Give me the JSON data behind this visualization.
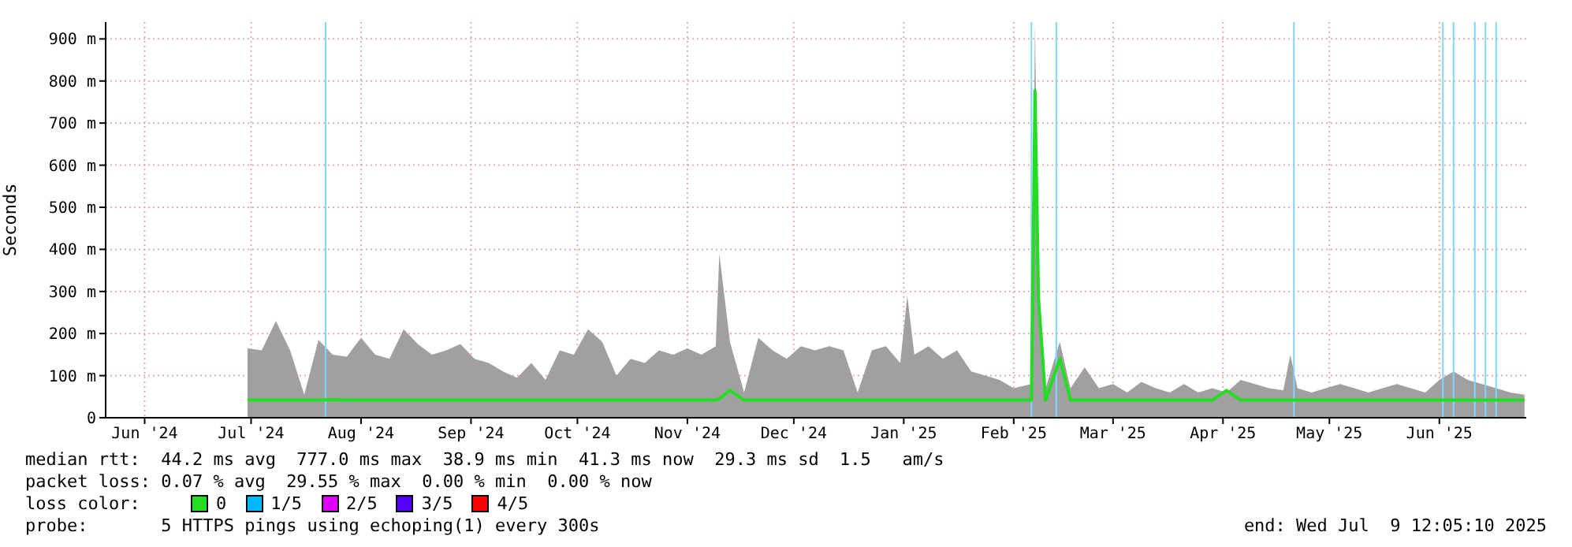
{
  "chart_data": {
    "type": "area",
    "ylabel": "Seconds",
    "legend_title": "loss color:",
    "legend": "bottom",
    "grid": true,
    "xlim": [
      "2024-06-04",
      "2025-07-09T12:05"
    ],
    "xticks": [
      {
        "value": "2024-06-15",
        "label": "Jun '24"
      },
      {
        "value": "2024-07-15",
        "label": "Jul '24"
      },
      {
        "value": "2024-08-15",
        "label": "Aug '24"
      },
      {
        "value": "2024-09-15",
        "label": "Sep '24"
      },
      {
        "value": "2024-10-15",
        "label": "Oct '24"
      },
      {
        "value": "2024-11-15",
        "label": "Nov '24"
      },
      {
        "value": "2024-12-15",
        "label": "Dec '24"
      },
      {
        "value": "2025-01-15",
        "label": "Jan '25"
      },
      {
        "value": "2025-02-15",
        "label": "Feb '25"
      },
      {
        "value": "2025-03-15",
        "label": "Mar '25"
      },
      {
        "value": "2025-04-15",
        "label": "Apr '25"
      },
      {
        "value": "2025-05-15",
        "label": "May '25"
      },
      {
        "value": "2025-06-15",
        "label": "Jun '25"
      }
    ],
    "ylim": [
      0,
      940
    ],
    "yticks": [
      0,
      {
        "value": 100,
        "label": "100 m"
      },
      {
        "value": 200,
        "label": "200 m"
      },
      {
        "value": 300,
        "label": "300 m"
      },
      {
        "value": 400,
        "label": "400 m"
      },
      {
        "value": 500,
        "label": "500 m"
      },
      {
        "value": 600,
        "label": "600 m"
      },
      {
        "value": 700,
        "label": "700 m"
      },
      {
        "value": 800,
        "label": "800 m"
      },
      {
        "value": 900,
        "label": "900 m"
      }
    ],
    "x": [
      "2024-07-14",
      "2024-07-18",
      "2024-07-22",
      "2024-07-26",
      "2024-07-30",
      "2024-08-03",
      "2024-08-07",
      "2024-08-11",
      "2024-08-15",
      "2024-08-19",
      "2024-08-23",
      "2024-08-27",
      "2024-08-31",
      "2024-09-04",
      "2024-09-08",
      "2024-09-12",
      "2024-09-16",
      "2024-09-20",
      "2024-09-24",
      "2024-09-28",
      "2024-10-02",
      "2024-10-06",
      "2024-10-10",
      "2024-10-14",
      "2024-10-18",
      "2024-10-22",
      "2024-10-26",
      "2024-10-30",
      "2024-11-03",
      "2024-11-07",
      "2024-11-11",
      "2024-11-15",
      "2024-11-19",
      "2024-11-23",
      "2024-11-24",
      "2024-11-27",
      "2024-12-01",
      "2024-12-05",
      "2024-12-09",
      "2024-12-13",
      "2024-12-17",
      "2024-12-21",
      "2024-12-25",
      "2024-12-29",
      "2025-01-02",
      "2025-01-06",
      "2025-01-10",
      "2025-01-14",
      "2025-01-16",
      "2025-01-18",
      "2025-01-22",
      "2025-01-26",
      "2025-01-30",
      "2025-02-03",
      "2025-02-07",
      "2025-02-11",
      "2025-02-15",
      "2025-02-20",
      "2025-02-21",
      "2025-02-22",
      "2025-02-24",
      "2025-02-28",
      "2025-03-03",
      "2025-03-07",
      "2025-03-11",
      "2025-03-15",
      "2025-03-19",
      "2025-03-23",
      "2025-03-27",
      "2025-03-31",
      "2025-04-04",
      "2025-04-08",
      "2025-04-12",
      "2025-04-16",
      "2025-04-20",
      "2025-04-24",
      "2025-04-28",
      "2025-05-02",
      "2025-05-04",
      "2025-05-06",
      "2025-05-10",
      "2025-05-14",
      "2025-05-18",
      "2025-05-22",
      "2025-05-26",
      "2025-05-30",
      "2025-06-03",
      "2025-06-07",
      "2025-06-11",
      "2025-06-15",
      "2025-06-19",
      "2025-06-23",
      "2025-06-27",
      "2025-07-01",
      "2025-07-05",
      "2025-07-09"
    ],
    "series": [
      {
        "color": "#a0a0a0",
        "values": [
          165,
          160,
          230,
          160,
          55,
          185,
          150,
          145,
          190,
          150,
          140,
          210,
          175,
          150,
          160,
          175,
          140,
          130,
          110,
          95,
          130,
          90,
          160,
          150,
          210,
          180,
          100,
          140,
          130,
          160,
          150,
          165,
          150,
          170,
          390,
          180,
          60,
          190,
          160,
          140,
          170,
          160,
          170,
          160,
          60,
          160,
          170,
          130,
          290,
          150,
          170,
          140,
          160,
          110,
          100,
          90,
          70,
          80,
          935,
          330,
          70,
          180,
          70,
          120,
          70,
          80,
          60,
          85,
          70,
          60,
          80,
          60,
          70,
          60,
          90,
          80,
          70,
          65,
          150,
          70,
          60,
          70,
          80,
          70,
          60,
          70,
          80,
          70,
          60,
          90,
          110,
          90,
          80,
          70,
          60,
          55
        ]
      },
      {
        "type": "line",
        "name": "0",
        "color": "#22dd22",
        "values": [
          42,
          42,
          42,
          42,
          42,
          42,
          43,
          42,
          42,
          42,
          42,
          42,
          42,
          42,
          42,
          42,
          42,
          42,
          42,
          42,
          42,
          42,
          42,
          42,
          42,
          42,
          42,
          42,
          42,
          42,
          42,
          42,
          42,
          42,
          45,
          65,
          42,
          42,
          42,
          42,
          42,
          42,
          42,
          42,
          42,
          42,
          42,
          42,
          42,
          42,
          42,
          42,
          42,
          42,
          42,
          42,
          42,
          42,
          777,
          280,
          42,
          140,
          42,
          42,
          42,
          42,
          42,
          42,
          42,
          42,
          42,
          42,
          42,
          65,
          42,
          42,
          42,
          42,
          42,
          42,
          42,
          42,
          42,
          42,
          42,
          42,
          42,
          42,
          42,
          42,
          42,
          42,
          42,
          42,
          42,
          42
        ]
      },
      {
        "type": "line",
        "name": "1/5",
        "color": "#00b8ff",
        "values": [
          null,
          null,
          null,
          null,
          null,
          null,
          null,
          null,
          null,
          null,
          null,
          null,
          null,
          null,
          null,
          null,
          null,
          null,
          null,
          null,
          null,
          null,
          null,
          null,
          null,
          null,
          null,
          null,
          null,
          null,
          null,
          null,
          null,
          null,
          null,
          null,
          null,
          null,
          null,
          null,
          null,
          null,
          null,
          null,
          null,
          null,
          null,
          null,
          null,
          null,
          null,
          null,
          null,
          null,
          null,
          null,
          null,
          null,
          null,
          null,
          null,
          null,
          null,
          null,
          null,
          null,
          null,
          null,
          null,
          null,
          null,
          null,
          null,
          null,
          null,
          null,
          null,
          null,
          null,
          null,
          null,
          null,
          null,
          null,
          null,
          null,
          null,
          null,
          null,
          null,
          null,
          null,
          null,
          null,
          null,
          null
        ]
      },
      {
        "type": "line",
        "name": "2/5",
        "color": "#dd00ff",
        "values": [
          null,
          null,
          null,
          null,
          null,
          null,
          null,
          null,
          null,
          null,
          null,
          null,
          null,
          null,
          null,
          null,
          null,
          null,
          null,
          null,
          null,
          null,
          null,
          null,
          null,
          null,
          null,
          null,
          null,
          null,
          null,
          null,
          null,
          null,
          null,
          null,
          null,
          null,
          null,
          null,
          null,
          null,
          null,
          null,
          null,
          null,
          null,
          null,
          null,
          null,
          null,
          null,
          null,
          null,
          null,
          null,
          null,
          null,
          null,
          null,
          null,
          null,
          null,
          null,
          null,
          null,
          null,
          null,
          null,
          null,
          null,
          null,
          null,
          null,
          null,
          null,
          null,
          null,
          null,
          null,
          null,
          null,
          null,
          null,
          null,
          null,
          null,
          null,
          null,
          null,
          null,
          null,
          null,
          null,
          null,
          null
        ]
      },
      {
        "type": "line",
        "name": "3/5",
        "color": "#5500ff",
        "values": [
          null,
          null,
          null,
          null,
          null,
          null,
          null,
          null,
          null,
          null,
          null,
          null,
          null,
          null,
          null,
          null,
          null,
          null,
          null,
          null,
          null,
          null,
          null,
          null,
          null,
          null,
          null,
          null,
          null,
          null,
          null,
          null,
          null,
          null,
          null,
          null,
          null,
          null,
          null,
          null,
          null,
          null,
          null,
          null,
          null,
          null,
          null,
          null,
          null,
          null,
          null,
          null,
          null,
          null,
          null,
          null,
          null,
          null,
          null,
          null,
          null,
          null,
          null,
          null,
          null,
          null,
          null,
          null,
          null,
          null,
          null,
          null,
          null,
          null,
          null,
          null,
          null,
          null,
          null,
          null,
          null,
          null,
          null,
          null,
          null,
          null,
          null,
          null,
          null,
          null,
          null,
          null,
          null,
          null,
          null,
          null
        ]
      },
      {
        "type": "line",
        "name": "4/5",
        "color": "#ff0000",
        "values": [
          null,
          null,
          null,
          null,
          null,
          null,
          null,
          null,
          null,
          null,
          null,
          null,
          null,
          null,
          null,
          null,
          null,
          null,
          null,
          null,
          null,
          null,
          null,
          null,
          null,
          null,
          null,
          null,
          null,
          null,
          null,
          null,
          null,
          null,
          null,
          null,
          null,
          null,
          null,
          null,
          null,
          null,
          null,
          null,
          null,
          null,
          null,
          null,
          null,
          null,
          null,
          null,
          null,
          null,
          null,
          null,
          null,
          null,
          null,
          null,
          null,
          null,
          null,
          null,
          null,
          null,
          null,
          null,
          null,
          null,
          null,
          null,
          null,
          null,
          null,
          null,
          null,
          null,
          null,
          null,
          null,
          null,
          null,
          null,
          null,
          null,
          null,
          null,
          null,
          null,
          null,
          null,
          null,
          null,
          null,
          null
        ]
      }
    ],
    "ref_lines": [
      {
        "axis": "x",
        "value": "2024-08-05",
        "color": "#80d4ff"
      },
      {
        "axis": "x",
        "value": "2025-02-20",
        "color": "#80d4ff"
      },
      {
        "axis": "x",
        "value": "2025-02-27",
        "color": "#80d4ff"
      },
      {
        "axis": "x",
        "value": "2025-05-05",
        "color": "#80d4ff"
      },
      {
        "axis": "x",
        "value": "2025-06-16",
        "color": "#80d4ff"
      },
      {
        "axis": "x",
        "value": "2025-06-19",
        "color": "#80d4ff"
      },
      {
        "axis": "x",
        "value": "2025-06-25",
        "color": "#80d4ff"
      },
      {
        "axis": "x",
        "value": "2025-06-28",
        "color": "#80d4ff"
      },
      {
        "axis": "x",
        "value": "2025-07-01",
        "color": "#80d4ff"
      }
    ],
    "annotations": [
      "median rtt:  44.2 ms avg  777.0 ms max  38.9 ms min  41.3 ms now  29.3 ms sd  1.5   am/s",
      "packet loss: 0.07 % avg  29.55 % max  0.00 % min  0.00 % now",
      "probe:       5 HTTPS pings using echoping(1) every 300s",
      "end: Wed Jul  9 12:05:10 2025"
    ]
  }
}
